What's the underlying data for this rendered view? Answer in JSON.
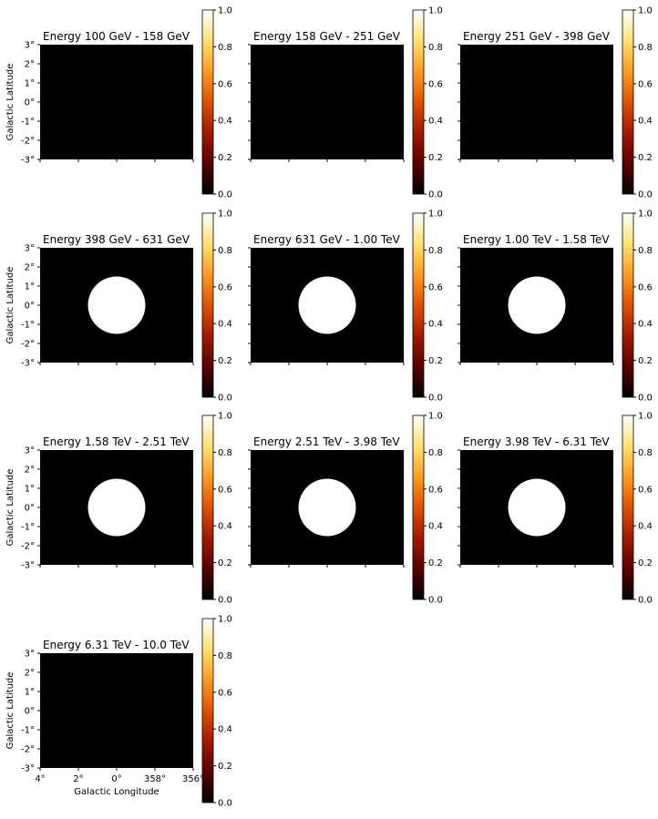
{
  "figure": {
    "ylabel": "Galactic Latitude",
    "xlabel": "Galactic Longitude",
    "y_ticks": [
      "3°",
      "2°",
      "1°",
      "0°",
      "-1°",
      "-2°",
      "-3°"
    ],
    "x_ticks": [
      "4°",
      "2°",
      "0°",
      "358°",
      "356°"
    ],
    "colorbar_ticks": [
      "1.0",
      "0.8",
      "0.6",
      "0.4",
      "0.2",
      "0.0"
    ],
    "colormap": [
      "#000000",
      "#5a0000",
      "#a01a00",
      "#e05000",
      "#ff9c20",
      "#ffe070",
      "#ffffff"
    ]
  },
  "chart_data": [
    {
      "type": "heatmap",
      "title": "Energy 100 GeV - 158 GeV",
      "xlim": [
        4,
        -4
      ],
      "ylim": [
        -3,
        3
      ],
      "clim": [
        0,
        1
      ],
      "disk": null
    },
    {
      "type": "heatmap",
      "title": "Energy 158 GeV - 251 GeV",
      "xlim": [
        4,
        -4
      ],
      "ylim": [
        -3,
        3
      ],
      "clim": [
        0,
        1
      ],
      "disk": null
    },
    {
      "type": "heatmap",
      "title": "Energy 251 GeV - 398 GeV",
      "xlim": [
        4,
        -4
      ],
      "ylim": [
        -3,
        3
      ],
      "clim": [
        0,
        1
      ],
      "disk": null
    },
    {
      "type": "heatmap",
      "title": "Energy 398 GeV - 631 GeV",
      "xlim": [
        4,
        -4
      ],
      "ylim": [
        -3,
        3
      ],
      "clim": [
        0,
        1
      ],
      "disk": {
        "l": 0,
        "b": 0,
        "radius_deg": 1.5,
        "value": 1.0
      }
    },
    {
      "type": "heatmap",
      "title": "Energy 631 GeV - 1.00 TeV",
      "xlim": [
        4,
        -4
      ],
      "ylim": [
        -3,
        3
      ],
      "clim": [
        0,
        1
      ],
      "disk": {
        "l": 0,
        "b": 0,
        "radius_deg": 1.5,
        "value": 1.0
      }
    },
    {
      "type": "heatmap",
      "title": "Energy 1.00 TeV - 1.58 TeV",
      "xlim": [
        4,
        -4
      ],
      "ylim": [
        -3,
        3
      ],
      "clim": [
        0,
        1
      ],
      "disk": {
        "l": 0,
        "b": 0,
        "radius_deg": 1.5,
        "value": 1.0
      }
    },
    {
      "type": "heatmap",
      "title": "Energy 1.58 TeV - 2.51 TeV",
      "xlim": [
        4,
        -4
      ],
      "ylim": [
        -3,
        3
      ],
      "clim": [
        0,
        1
      ],
      "disk": {
        "l": 0,
        "b": 0,
        "radius_deg": 1.5,
        "value": 1.0
      }
    },
    {
      "type": "heatmap",
      "title": "Energy 2.51 TeV - 3.98 TeV",
      "xlim": [
        4,
        -4
      ],
      "ylim": [
        -3,
        3
      ],
      "clim": [
        0,
        1
      ],
      "disk": {
        "l": 0,
        "b": 0,
        "radius_deg": 1.5,
        "value": 1.0
      }
    },
    {
      "type": "heatmap",
      "title": "Energy 3.98 TeV - 6.31 TeV",
      "xlim": [
        4,
        -4
      ],
      "ylim": [
        -3,
        3
      ],
      "clim": [
        0,
        1
      ],
      "disk": {
        "l": 0,
        "b": 0,
        "radius_deg": 1.5,
        "value": 1.0
      }
    },
    {
      "type": "heatmap",
      "title": "Energy 6.31 TeV - 10.0 TeV",
      "xlim": [
        4,
        -4
      ],
      "ylim": [
        -3,
        3
      ],
      "clim": [
        0,
        1
      ],
      "disk": null
    }
  ]
}
